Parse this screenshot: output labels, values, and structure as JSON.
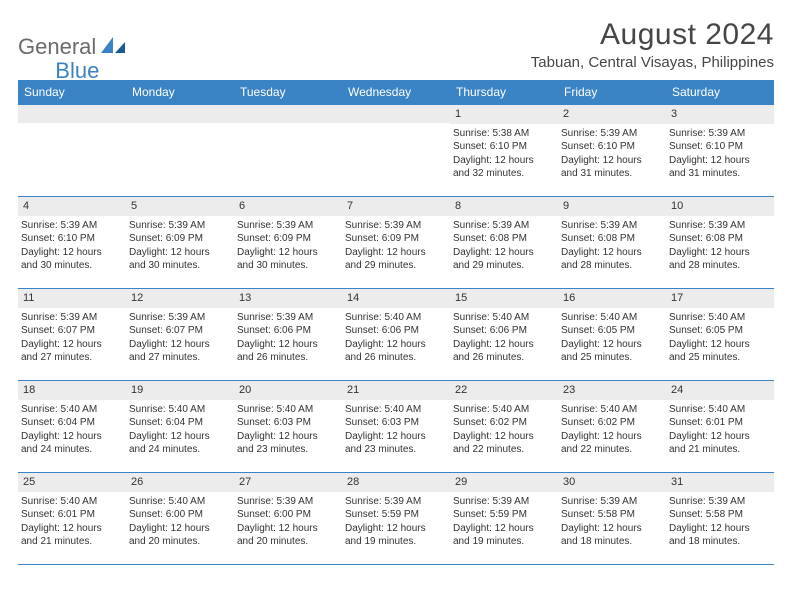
{
  "logo": {
    "part1": "General",
    "part2": "Blue"
  },
  "title": "August 2024",
  "location": "Tabuan, Central Visayas, Philippines",
  "colors": {
    "header_bg": "#3a83c4",
    "header_text": "#ffffff",
    "daynum_bg": "#ececec",
    "border": "#3a83c4",
    "text": "#333333",
    "logo_gray": "#6b6b6b",
    "logo_blue": "#3a83c4",
    "background": "#ffffff"
  },
  "weekdays": [
    "Sunday",
    "Monday",
    "Tuesday",
    "Wednesday",
    "Thursday",
    "Friday",
    "Saturday"
  ],
  "weeks": [
    [
      {
        "n": "",
        "sr": "",
        "ss": "",
        "dl": ""
      },
      {
        "n": "",
        "sr": "",
        "ss": "",
        "dl": ""
      },
      {
        "n": "",
        "sr": "",
        "ss": "",
        "dl": ""
      },
      {
        "n": "",
        "sr": "",
        "ss": "",
        "dl": ""
      },
      {
        "n": "1",
        "sr": "Sunrise: 5:38 AM",
        "ss": "Sunset: 6:10 PM",
        "dl": "Daylight: 12 hours and 32 minutes."
      },
      {
        "n": "2",
        "sr": "Sunrise: 5:39 AM",
        "ss": "Sunset: 6:10 PM",
        "dl": "Daylight: 12 hours and 31 minutes."
      },
      {
        "n": "3",
        "sr": "Sunrise: 5:39 AM",
        "ss": "Sunset: 6:10 PM",
        "dl": "Daylight: 12 hours and 31 minutes."
      }
    ],
    [
      {
        "n": "4",
        "sr": "Sunrise: 5:39 AM",
        "ss": "Sunset: 6:10 PM",
        "dl": "Daylight: 12 hours and 30 minutes."
      },
      {
        "n": "5",
        "sr": "Sunrise: 5:39 AM",
        "ss": "Sunset: 6:09 PM",
        "dl": "Daylight: 12 hours and 30 minutes."
      },
      {
        "n": "6",
        "sr": "Sunrise: 5:39 AM",
        "ss": "Sunset: 6:09 PM",
        "dl": "Daylight: 12 hours and 30 minutes."
      },
      {
        "n": "7",
        "sr": "Sunrise: 5:39 AM",
        "ss": "Sunset: 6:09 PM",
        "dl": "Daylight: 12 hours and 29 minutes."
      },
      {
        "n": "8",
        "sr": "Sunrise: 5:39 AM",
        "ss": "Sunset: 6:08 PM",
        "dl": "Daylight: 12 hours and 29 minutes."
      },
      {
        "n": "9",
        "sr": "Sunrise: 5:39 AM",
        "ss": "Sunset: 6:08 PM",
        "dl": "Daylight: 12 hours and 28 minutes."
      },
      {
        "n": "10",
        "sr": "Sunrise: 5:39 AM",
        "ss": "Sunset: 6:08 PM",
        "dl": "Daylight: 12 hours and 28 minutes."
      }
    ],
    [
      {
        "n": "11",
        "sr": "Sunrise: 5:39 AM",
        "ss": "Sunset: 6:07 PM",
        "dl": "Daylight: 12 hours and 27 minutes."
      },
      {
        "n": "12",
        "sr": "Sunrise: 5:39 AM",
        "ss": "Sunset: 6:07 PM",
        "dl": "Daylight: 12 hours and 27 minutes."
      },
      {
        "n": "13",
        "sr": "Sunrise: 5:39 AM",
        "ss": "Sunset: 6:06 PM",
        "dl": "Daylight: 12 hours and 26 minutes."
      },
      {
        "n": "14",
        "sr": "Sunrise: 5:40 AM",
        "ss": "Sunset: 6:06 PM",
        "dl": "Daylight: 12 hours and 26 minutes."
      },
      {
        "n": "15",
        "sr": "Sunrise: 5:40 AM",
        "ss": "Sunset: 6:06 PM",
        "dl": "Daylight: 12 hours and 26 minutes."
      },
      {
        "n": "16",
        "sr": "Sunrise: 5:40 AM",
        "ss": "Sunset: 6:05 PM",
        "dl": "Daylight: 12 hours and 25 minutes."
      },
      {
        "n": "17",
        "sr": "Sunrise: 5:40 AM",
        "ss": "Sunset: 6:05 PM",
        "dl": "Daylight: 12 hours and 25 minutes."
      }
    ],
    [
      {
        "n": "18",
        "sr": "Sunrise: 5:40 AM",
        "ss": "Sunset: 6:04 PM",
        "dl": "Daylight: 12 hours and 24 minutes."
      },
      {
        "n": "19",
        "sr": "Sunrise: 5:40 AM",
        "ss": "Sunset: 6:04 PM",
        "dl": "Daylight: 12 hours and 24 minutes."
      },
      {
        "n": "20",
        "sr": "Sunrise: 5:40 AM",
        "ss": "Sunset: 6:03 PM",
        "dl": "Daylight: 12 hours and 23 minutes."
      },
      {
        "n": "21",
        "sr": "Sunrise: 5:40 AM",
        "ss": "Sunset: 6:03 PM",
        "dl": "Daylight: 12 hours and 23 minutes."
      },
      {
        "n": "22",
        "sr": "Sunrise: 5:40 AM",
        "ss": "Sunset: 6:02 PM",
        "dl": "Daylight: 12 hours and 22 minutes."
      },
      {
        "n": "23",
        "sr": "Sunrise: 5:40 AM",
        "ss": "Sunset: 6:02 PM",
        "dl": "Daylight: 12 hours and 22 minutes."
      },
      {
        "n": "24",
        "sr": "Sunrise: 5:40 AM",
        "ss": "Sunset: 6:01 PM",
        "dl": "Daylight: 12 hours and 21 minutes."
      }
    ],
    [
      {
        "n": "25",
        "sr": "Sunrise: 5:40 AM",
        "ss": "Sunset: 6:01 PM",
        "dl": "Daylight: 12 hours and 21 minutes."
      },
      {
        "n": "26",
        "sr": "Sunrise: 5:40 AM",
        "ss": "Sunset: 6:00 PM",
        "dl": "Daylight: 12 hours and 20 minutes."
      },
      {
        "n": "27",
        "sr": "Sunrise: 5:39 AM",
        "ss": "Sunset: 6:00 PM",
        "dl": "Daylight: 12 hours and 20 minutes."
      },
      {
        "n": "28",
        "sr": "Sunrise: 5:39 AM",
        "ss": "Sunset: 5:59 PM",
        "dl": "Daylight: 12 hours and 19 minutes."
      },
      {
        "n": "29",
        "sr": "Sunrise: 5:39 AM",
        "ss": "Sunset: 5:59 PM",
        "dl": "Daylight: 12 hours and 19 minutes."
      },
      {
        "n": "30",
        "sr": "Sunrise: 5:39 AM",
        "ss": "Sunset: 5:58 PM",
        "dl": "Daylight: 12 hours and 18 minutes."
      },
      {
        "n": "31",
        "sr": "Sunrise: 5:39 AM",
        "ss": "Sunset: 5:58 PM",
        "dl": "Daylight: 12 hours and 18 minutes."
      }
    ]
  ]
}
